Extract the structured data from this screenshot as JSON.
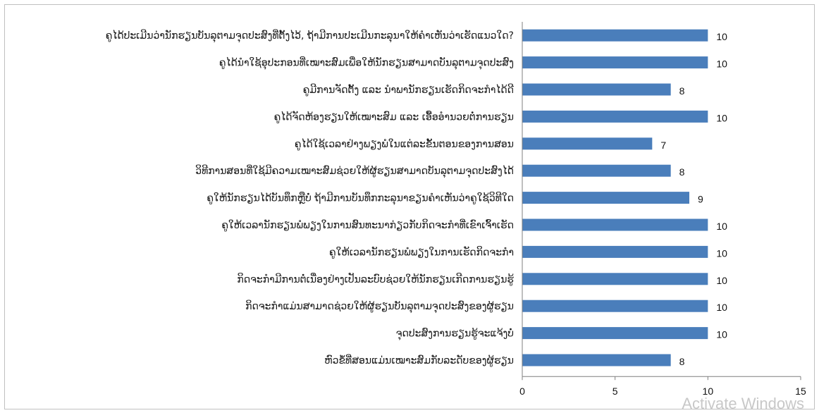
{
  "chart_data": {
    "type": "bar",
    "orientation": "horizontal",
    "categories": [
      "ຄູໄດ້ປະເມີນວ່ານັກຮຽນບັນລຸຕາມຈຸດປະສົງທີ່ຕັ້ງໄວ້, ຖ້າມີການປະເມີນກະລຸນາໃຫ້ຄຳເຫັນວ່າເຮັດແນວໃດ?",
      "ຄູໄດ້ນຳໃຊ້ອຸປະກອນທີ່ເໝາະສົມເພື່ອໃຫ້ນັກຮຽນສາມາດບັນລຸຕາມຈຸດປະສົງ",
      "ຄູມີການຈັດຕັ້ງ ແລະ ນຳພານັກຮຽນເຮັດກິດຈະກຳໄດ້ດີ",
      "ຄູໄດ້ຈັດຫ້ອງຮຽນໃຫ້ເໝາະສົມ ແລະ ເອື້ອອຳນວຍຕໍ່ການຮຽນ",
      "ຄູໄດ້ໃຊ້ເວລາຢ່າງພຽງພໍໃນແຕ່ລະຂັ້ນຕອນຂອງການສອນ",
      "ວິທີການສອນທີ່ໃຊ້ມີຄວາມເໝາະສົມຊ່ວຍໃຫ້ຜູ້ຮຽນສາມາດບັນລຸຕາມຈຸດປະສົງໄດ້",
      "ຄູໃຫ້ນັກຮຽນໄດ້ບັນທຶກຫຼືບໍ່ ຖ້າມີການບັນທຶກກະລຸນາຂຽນຄຳເຫັນວ່າຄູໃຊ້ວິທີໃດ",
      "ຄູໃຫ້ເວລານັກຮຽນພໍພຽງໃນການສົນທະນາກ່ຽວກັບກິດຈະກຳທີ່ເຂົາເຈົ້າເຮັດ",
      "ຄູໃຫ້ເວລານັກຮຽນພໍພຽງໃນການເຮັດກິດຈະກຳ",
      "ກິດຈະກຳມີການຕໍ່ເນື່ອງຢ່າງເປັນລະບົບຊ່ວຍໃຫ້ນັກຮຽນເກີດການຮຽນຮູ້",
      "ກິດຈະກຳແມ່ນສາມາດຊ່ວຍໃຫ້ຜູ້ຮຽນບັນລຸຕາມຈຸດປະສົງຂອງຜູ້ຮຽນ",
      "ຈຸດປະສົງການຮຽນຮູ້ຈະແຈ້ງບໍ່",
      "ຫົວຂໍ້ທີ່ສອນແມ່ນເໝາະສົມກັບລະດັບຂອງຜູ້ຮຽນ"
    ],
    "values": [
      10,
      10,
      8,
      10,
      7,
      8,
      9,
      10,
      10,
      10,
      10,
      10,
      8
    ],
    "xlim": [
      0,
      15
    ],
    "xticks": [
      "0",
      "5",
      "10",
      "15"
    ],
    "data_labels": [
      "10",
      "10",
      "8",
      "10",
      "7",
      "8",
      "9",
      "10",
      "10",
      "10",
      "10",
      "10",
      "8"
    ],
    "bar_color": "#4a7ebb",
    "grid": false,
    "legend": "none"
  },
  "watermark": "Activate Windows"
}
